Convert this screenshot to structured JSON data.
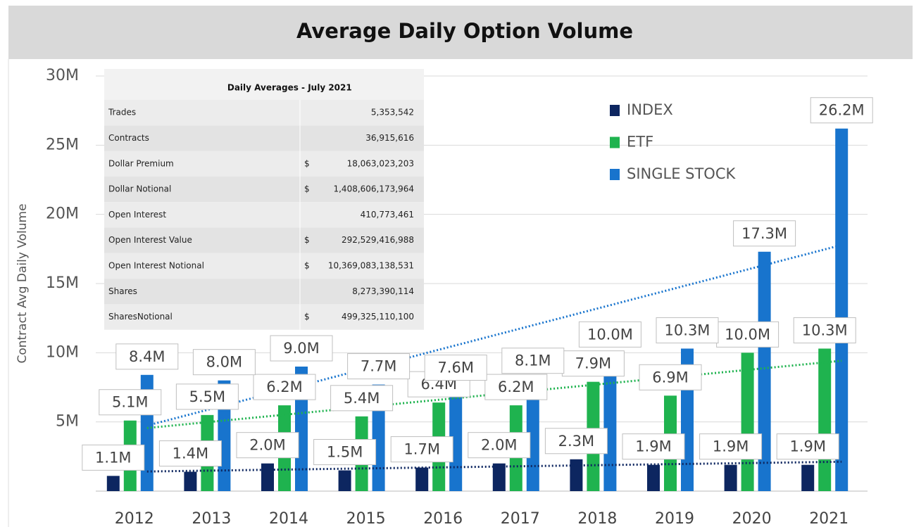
{
  "chart_data": {
    "type": "bar",
    "title": "Average Daily Option Volume",
    "y_label": "Contract Avg Daily Volume",
    "categories": [
      "2012",
      "2013",
      "2014",
      "2015",
      "2016",
      "2017",
      "2018",
      "2019",
      "2020",
      "2021"
    ],
    "series": [
      {
        "name": "INDEX",
        "color": "#0d2660",
        "values": [
          1.1,
          1.4,
          2.0,
          1.5,
          1.7,
          2.0,
          2.3,
          1.9,
          1.9,
          1.9
        ],
        "value_labels": [
          "1.1M",
          "1.4M",
          "2.0M",
          "1.5M",
          "1.7M",
          "2.0M",
          "2.3M",
          "1.9M",
          "1.9M",
          "1.9M"
        ]
      },
      {
        "name": "ETF",
        "color": "#1fb34f",
        "values": [
          5.1,
          5.5,
          6.2,
          5.4,
          6.4,
          6.2,
          7.9,
          6.9,
          10.0,
          10.3
        ],
        "value_labels": [
          "5.1M",
          "5.5M",
          "6.2M",
          "5.4M",
          "6.4M",
          "6.2M",
          "7.9M",
          "6.9M",
          "10.0M",
          "10.3M"
        ]
      },
      {
        "name": "SINGLE STOCK",
        "color": "#1874cd",
        "values": [
          8.4,
          8.0,
          9.0,
          7.7,
          7.6,
          8.1,
          10.0,
          10.3,
          17.3,
          26.2
        ],
        "value_labels": [
          "8.4M",
          "8.0M",
          "9.0M",
          "7.7M",
          "7.6M",
          "8.1M",
          "10.0M",
          "10.3M",
          "17.3M",
          "26.2M"
        ]
      }
    ],
    "ylim": [
      0,
      30
    ],
    "yticks": [
      {
        "value": 5,
        "label": "5M"
      },
      {
        "value": 10,
        "label": "10M"
      },
      {
        "value": 15,
        "label": "15M"
      },
      {
        "value": 20,
        "label": "20M"
      },
      {
        "value": 25,
        "label": "25M"
      },
      {
        "value": 30,
        "label": "30M"
      }
    ],
    "grid": true,
    "trendline": true,
    "legend": "upper right"
  },
  "table": {
    "title": "Daily Averages - July 2021",
    "rows": [
      {
        "label": "Trades",
        "value": "5,353,542"
      },
      {
        "label": "Contracts",
        "value": "36,915,616"
      },
      {
        "label": "Dollar Premium",
        "currency": "$",
        "value": "18,063,023,203"
      },
      {
        "label": "Dollar Notional",
        "currency": "$",
        "value": "1,408,606,173,964"
      },
      {
        "label": "Open Interest",
        "value": "410,773,461"
      },
      {
        "label": "Open Interest Value",
        "currency": "$",
        "value": "292,529,416,988"
      },
      {
        "label": "Open Interest Notional",
        "currency": "$",
        "value": "10,369,083,138,531"
      },
      {
        "label": "Shares",
        "value": "8,273,390,114"
      },
      {
        "label": "SharesNotional",
        "currency": "$",
        "value": "499,325,110,100"
      }
    ]
  }
}
